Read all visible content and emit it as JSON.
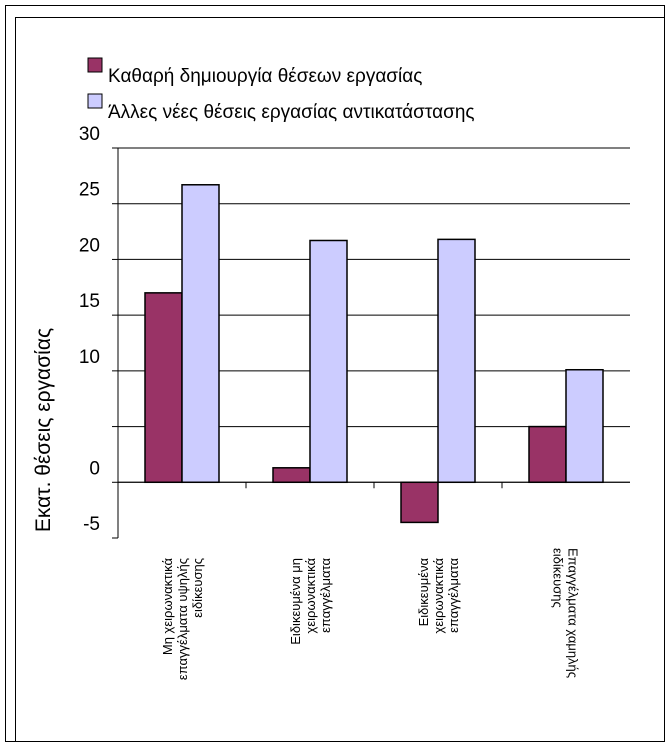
{
  "chart_data": {
    "type": "bar",
    "categories": [
      [
        "Μη χειρωνακτικά",
        "επαγγέλματα υψηλής",
        "ειδίκευσης"
      ],
      [
        "Ειδικευμένα μη",
        "χειρωνακτικά",
        "επαγγέλματα"
      ],
      [
        "Ειδικευμένα",
        "χειρωνακτικά",
        "επαγγέλματα"
      ],
      [
        "Επαγγέλματα  χαμηλής",
        "ειδίκευσης"
      ]
    ],
    "series": [
      {
        "name": "Καθαρή δημιουργία θέσεων εργασίας",
        "color": "#993366",
        "values": [
          17,
          1.3,
          -3.6,
          5
        ]
      },
      {
        "name": "Άλλες νέες θέσεις εργασίας αντικατάστασης",
        "color": "#CCCCFF",
        "values": [
          26.7,
          21.7,
          21.8,
          10.1
        ]
      }
    ],
    "ylabel": "Εκατ. θέσεις εργασίας",
    "ylim": [
      -5,
      30
    ],
    "yticks": [
      30,
      25,
      20,
      15,
      10,
      "",
      0,
      -5
    ],
    "grid": true,
    "legend": "top"
  }
}
